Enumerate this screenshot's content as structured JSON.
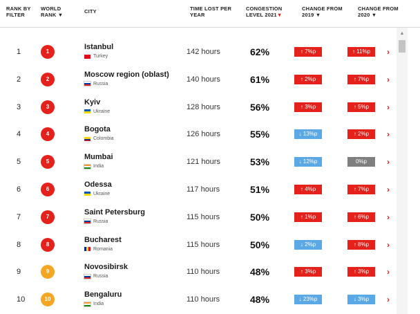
{
  "header": {
    "rank_by_filter": [
      "RANK BY",
      "FILTER"
    ],
    "world_rank": [
      "WORLD",
      "RANK"
    ],
    "city": "CITY",
    "time_lost": [
      "TIME LOST PER",
      "YEAR"
    ],
    "congestion": [
      "CONGESTION",
      "LEVEL 2021"
    ],
    "change_2019": [
      "CHANGE FROM",
      "2019"
    ],
    "change_2020": [
      "CHANGE FROM",
      "2020"
    ]
  },
  "rows": [
    {
      "rank": "1",
      "world": "1",
      "world_color": "red",
      "city": "Istanbul",
      "country": "Turkey",
      "flag": "turkey",
      "hours": "142 hours",
      "congestion": "62%",
      "c2019": "7%p",
      "c2019_dir": "up",
      "c2020": "11%p",
      "c2020_dir": "up"
    },
    {
      "rank": "2",
      "world": "2",
      "world_color": "red",
      "city": "Moscow region (oblast)",
      "country": "Russia",
      "flag": "russia",
      "hours": "140 hours",
      "congestion": "61%",
      "c2019": "2%p",
      "c2019_dir": "up",
      "c2020": "7%p",
      "c2020_dir": "up"
    },
    {
      "rank": "3",
      "world": "3",
      "world_color": "red",
      "city": "Kyiv",
      "country": "Ukraine",
      "flag": "ukraine",
      "hours": "128 hours",
      "congestion": "56%",
      "c2019": "3%p",
      "c2019_dir": "up",
      "c2020": "5%p",
      "c2020_dir": "up"
    },
    {
      "rank": "4",
      "world": "4",
      "world_color": "red",
      "city": "Bogota",
      "country": "Colombia",
      "flag": "colombia",
      "hours": "126 hours",
      "congestion": "55%",
      "c2019": "13%p",
      "c2019_dir": "down",
      "c2020": "2%p",
      "c2020_dir": "up"
    },
    {
      "rank": "5",
      "world": "5",
      "world_color": "red",
      "city": "Mumbai",
      "country": "India",
      "flag": "india",
      "hours": "121 hours",
      "congestion": "53%",
      "c2019": "12%p",
      "c2019_dir": "down",
      "c2020": "0%p",
      "c2020_dir": "flat"
    },
    {
      "rank": "6",
      "world": "6",
      "world_color": "red",
      "city": "Odessa",
      "country": "Ukraine",
      "flag": "ukraine",
      "hours": "117 hours",
      "congestion": "51%",
      "c2019": "4%p",
      "c2019_dir": "up",
      "c2020": "7%p",
      "c2020_dir": "up"
    },
    {
      "rank": "7",
      "world": "7",
      "world_color": "red",
      "city": "Saint Petersburg",
      "country": "Russia",
      "flag": "russia",
      "hours": "115 hours",
      "congestion": "50%",
      "c2019": "1%p",
      "c2019_dir": "up",
      "c2020": "6%p",
      "c2020_dir": "up"
    },
    {
      "rank": "8",
      "world": "8",
      "world_color": "red",
      "city": "Bucharest",
      "country": "Romania",
      "flag": "romania",
      "hours": "115 hours",
      "congestion": "50%",
      "c2019": "2%p",
      "c2019_dir": "down",
      "c2020": "8%p",
      "c2020_dir": "up"
    },
    {
      "rank": "9",
      "world": "9",
      "world_color": "orange",
      "city": "Novosibirsk",
      "country": "Russia",
      "flag": "russia",
      "hours": "110 hours",
      "congestion": "48%",
      "c2019": "3%p",
      "c2019_dir": "up",
      "c2020": "3%p",
      "c2020_dir": "up"
    },
    {
      "rank": "10",
      "world": "10",
      "world_color": "orange",
      "city": "Bengaluru",
      "country": "India",
      "flag": "india",
      "hours": "110 hours",
      "congestion": "48%",
      "c2019": "23%p",
      "c2019_dir": "down",
      "c2020": "3%p",
      "c2020_dir": "down"
    }
  ],
  "colors": {
    "accent_red": "#e4211b",
    "orange": "#f5a623",
    "down_blue": "#5aa9e6",
    "flat_gray": "#7f7f7f"
  },
  "icons": {
    "sort": "sort-down-arrow-icon",
    "row_link": "chevron-right-icon",
    "up": "arrow-up-icon",
    "down": "arrow-down-icon"
  }
}
